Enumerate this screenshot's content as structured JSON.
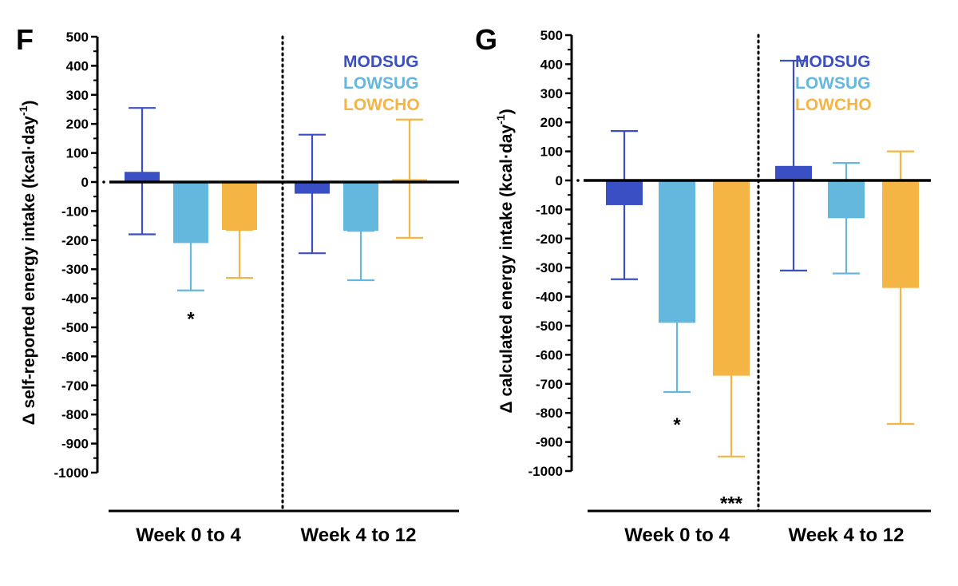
{
  "chart_data": [
    {
      "panel": "F",
      "type": "bar",
      "ylabel_main": "Δ self-reported energy intake (kcal·day",
      "ylabel_sup": "-1",
      "ylabel_close": ")",
      "ylim": [
        -1000,
        500
      ],
      "yticks": [
        500,
        400,
        300,
        200,
        100,
        0,
        -100,
        -200,
        -300,
        -400,
        -500,
        -600,
        -700,
        -800,
        -900,
        -1000
      ],
      "groups": [
        "Week 0 to 4",
        "Week 4 to 12"
      ],
      "series": [
        {
          "name": "MODSUG",
          "color": "#3b4fc4",
          "values": [
            35,
            -40
          ],
          "err_low": [
            -180,
            -245
          ],
          "err_high": [
            255,
            163
          ]
        },
        {
          "name": "LOWSUG",
          "color": "#64b8de",
          "values": [
            -210,
            -168
          ],
          "err_low": [
            -373,
            -338
          ],
          "err_high": [
            -50,
            -168
          ]
        },
        {
          "name": "LOWCHO",
          "color": "#f4b544",
          "values": [
            -165,
            10
          ],
          "err_low": [
            -330,
            -192
          ],
          "err_high": [
            -165,
            215
          ]
        }
      ],
      "annotations": [
        {
          "text": "*",
          "group": 0,
          "series": 1,
          "value": -460
        }
      ]
    },
    {
      "panel": "G",
      "type": "bar",
      "ylabel_main": "Δ calculated energy intake (kcal·day",
      "ylabel_sup": "-1",
      "ylabel_close": ")",
      "ylim": [
        -1000,
        500
      ],
      "yticks": [
        500,
        400,
        300,
        200,
        100,
        0,
        -100,
        -200,
        -300,
        -400,
        -500,
        -600,
        -700,
        -800,
        -900,
        -1000
      ],
      "groups": [
        "Week 0 to 4",
        "Week 4 to 12"
      ],
      "series": [
        {
          "name": "MODSUG",
          "color": "#3b4fc4",
          "values": [
            -85,
            50
          ],
          "err_low": [
            -340,
            -310
          ],
          "err_high": [
            170,
            412
          ]
        },
        {
          "name": "LOWSUG",
          "color": "#64b8de",
          "values": [
            -490,
            -130
          ],
          "err_low": [
            -728,
            -320
          ],
          "err_high": [
            -255,
            60
          ]
        },
        {
          "name": "LOWCHO",
          "color": "#f4b544",
          "values": [
            -672,
            -370
          ],
          "err_low": [
            -950,
            -838
          ],
          "err_high": [
            -395,
            100
          ]
        }
      ],
      "annotations": [
        {
          "text": "*",
          "group": 0,
          "series": 1,
          "value": -830
        },
        {
          "text": "***",
          "group": 0,
          "series": 2,
          "value": -1100
        }
      ]
    }
  ]
}
